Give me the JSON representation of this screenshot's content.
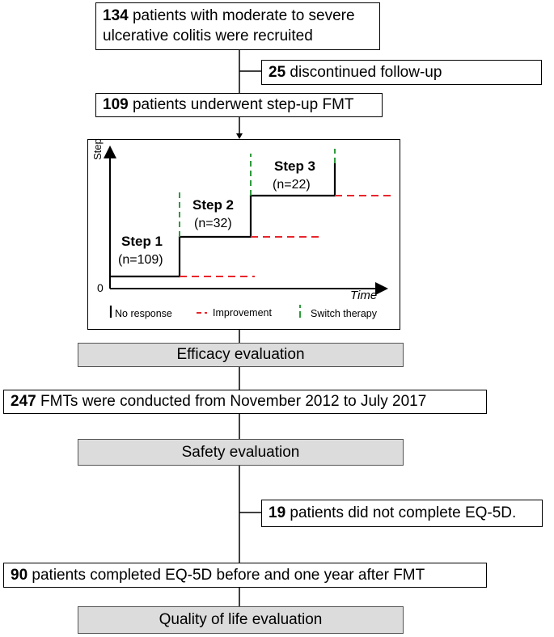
{
  "boxes": {
    "recruited": {
      "number": "134",
      "line1": " patients with moderate to severe",
      "line2": "ulcerative colitis were recruited"
    },
    "discontinued": {
      "number": "25",
      "text": " discontinued follow-up"
    },
    "underwent": {
      "number": "109",
      "text": " patients underwent step-up FMT"
    },
    "efficacy": {
      "text": "Efficacy evaluation"
    },
    "fmts": {
      "number": "247",
      "text": " FMTs were conducted from November 2012 to July 2017"
    },
    "safety": {
      "text": "Safety evaluation"
    },
    "incomplete": {
      "number": "19",
      "text": " patients did not complete EQ-5D."
    },
    "completed": {
      "number": "90",
      "text": " patients completed EQ-5D before and one year after FMT"
    },
    "qol": {
      "text": "Quality of life evaluation"
    }
  },
  "step_diagram": {
    "y_axis_label": "Step",
    "x_axis_label": "Time",
    "origin_label": "0",
    "steps": [
      {
        "name": "Step 1",
        "n": "(n=109)"
      },
      {
        "name": "Step 2",
        "n": "(n=32)"
      },
      {
        "name": "Step 3",
        "n": "(n=22)"
      }
    ],
    "legend": {
      "no_response": "No response",
      "improvement": "Improvement",
      "switch_therapy": "Switch therapy"
    },
    "colors": {
      "improvement": "#e8252b",
      "switch": "#2e9a3c",
      "line": "#000000"
    }
  }
}
